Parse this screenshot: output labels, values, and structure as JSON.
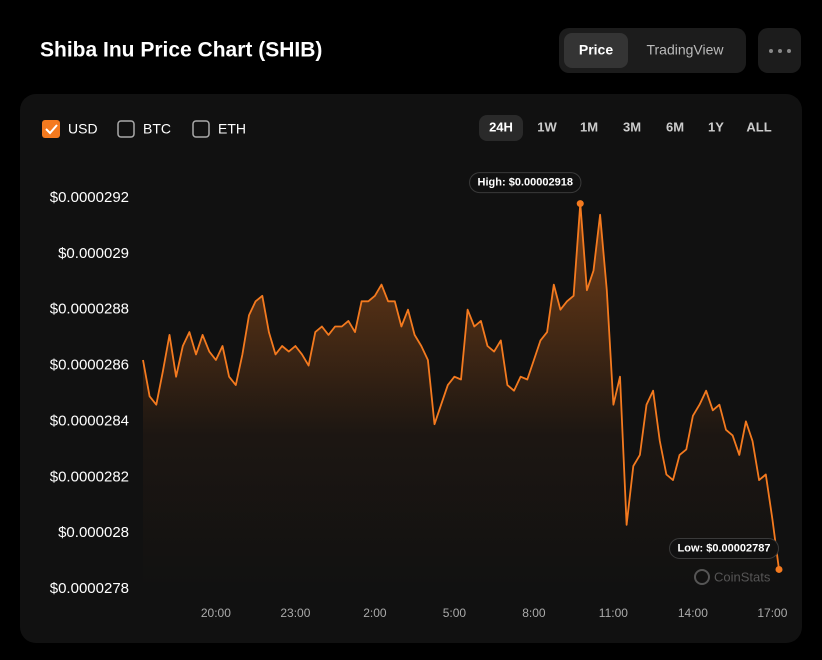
{
  "header": {
    "title": "Shiba Inu Price Chart (SHIB)",
    "tabs": [
      "Price",
      "TradingView"
    ],
    "active_tab": 0
  },
  "currencies": [
    {
      "label": "USD",
      "checked": true
    },
    {
      "label": "BTC",
      "checked": false
    },
    {
      "label": "ETH",
      "checked": false
    }
  ],
  "ranges": [
    "24H",
    "1W",
    "1M",
    "3M",
    "6M",
    "1Y",
    "ALL"
  ],
  "active_range": 0,
  "watermark": "CoinStats",
  "chart_data": {
    "type": "line",
    "color": "#f47a1f",
    "area": true,
    "annotations": {
      "high": "High: $0.00002918",
      "low": "Low: $0.00002787"
    },
    "categories": [
      null,
      null,
      null,
      null,
      null,
      null,
      null,
      null,
      null,
      null,
      null,
      "20:00",
      null,
      null,
      null,
      null,
      null,
      null,
      null,
      null,
      null,
      null,
      null,
      "23:00",
      null,
      null,
      null,
      null,
      null,
      null,
      null,
      null,
      null,
      null,
      null,
      "2:00",
      null,
      null,
      null,
      null,
      null,
      null,
      null,
      null,
      null,
      null,
      null,
      "5:00",
      null,
      null,
      null,
      null,
      null,
      null,
      null,
      null,
      null,
      null,
      null,
      "8:00",
      null,
      null,
      null,
      null,
      null,
      null,
      null,
      null,
      null,
      null,
      null,
      "11:00",
      null,
      null,
      null,
      null,
      null,
      null,
      null,
      null,
      null,
      null,
      null,
      "14:00",
      null,
      null,
      null,
      null,
      null,
      null,
      null,
      null,
      null,
      null,
      null,
      "17:00",
      null
    ],
    "values": [
      2.862e-05,
      2.849e-05,
      2.846e-05,
      2.858e-05,
      2.871e-05,
      2.856e-05,
      2.867e-05,
      2.872e-05,
      2.864e-05,
      2.871e-05,
      2.865e-05,
      2.862e-05,
      2.867e-05,
      2.856e-05,
      2.853e-05,
      2.864e-05,
      2.878e-05,
      2.883e-05,
      2.885e-05,
      2.872e-05,
      2.864e-05,
      2.867e-05,
      2.865e-05,
      2.867e-05,
      2.864e-05,
      2.86e-05,
      2.872e-05,
      2.874e-05,
      2.871e-05,
      2.874e-05,
      2.874e-05,
      2.876e-05,
      2.872e-05,
      2.883e-05,
      2.883e-05,
      2.885e-05,
      2.889e-05,
      2.883e-05,
      2.883e-05,
      2.874e-05,
      2.88e-05,
      2.871e-05,
      2.867e-05,
      2.862e-05,
      2.839e-05,
      2.846e-05,
      2.853e-05,
      2.856e-05,
      2.855e-05,
      2.88e-05,
      2.874e-05,
      2.876e-05,
      2.867e-05,
      2.865e-05,
      2.869e-05,
      2.853e-05,
      2.851e-05,
      2.856e-05,
      2.855e-05,
      2.862e-05,
      2.869e-05,
      2.872e-05,
      2.889e-05,
      2.88e-05,
      2.883e-05,
      2.885e-05,
      2.918e-05,
      2.887e-05,
      2.894e-05,
      2.914e-05,
      2.887e-05,
      2.846e-05,
      2.856e-05,
      2.803e-05,
      2.824e-05,
      2.828e-05,
      2.846e-05,
      2.851e-05,
      2.833e-05,
      2.821e-05,
      2.819e-05,
      2.828e-05,
      2.83e-05,
      2.842e-05,
      2.846e-05,
      2.851e-05,
      2.844e-05,
      2.846e-05,
      2.837e-05,
      2.835e-05,
      2.828e-05,
      2.84e-05,
      2.833e-05,
      2.819e-05,
      2.821e-05,
      2.805e-05,
      2.787e-05
    ],
    "ylim": [
      2.78e-05,
      2.92e-05
    ],
    "yticks": [
      {
        "value": 2.78e-05,
        "label": "$0.0000278"
      },
      {
        "value": 2.8e-05,
        "label": "$0.000028"
      },
      {
        "value": 2.82e-05,
        "label": "$0.0000282"
      },
      {
        "value": 2.84e-05,
        "label": "$0.0000284"
      },
      {
        "value": 2.86e-05,
        "label": "$0.0000286"
      },
      {
        "value": 2.88e-05,
        "label": "$0.0000288"
      },
      {
        "value": 2.9e-05,
        "label": "$0.000029"
      },
      {
        "value": 2.92e-05,
        "label": "$0.0000292"
      }
    ]
  }
}
